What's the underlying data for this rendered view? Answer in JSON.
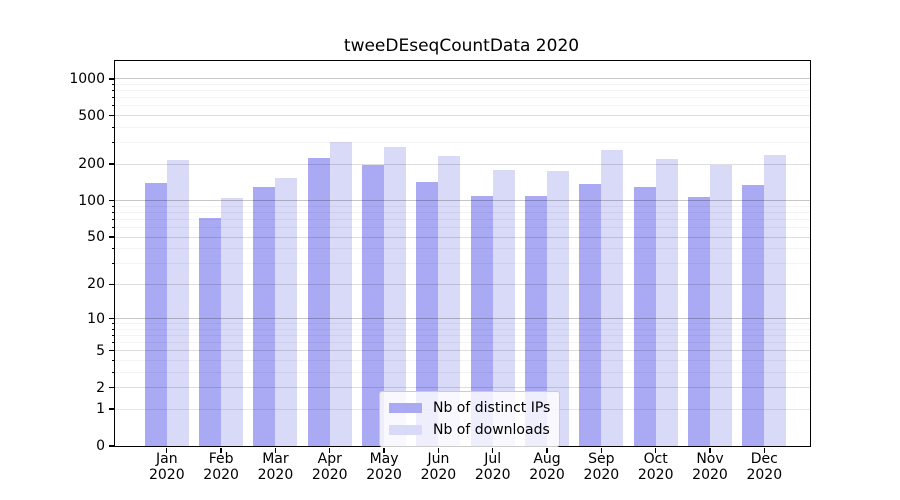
{
  "chart_data": {
    "type": "bar",
    "title": "tweeDEseqCountData 2020",
    "scale": "log1p",
    "grid": true,
    "legend_position": "inside-bottom-center",
    "months": [
      "Jan",
      "Feb",
      "Mar",
      "Apr",
      "May",
      "Jun",
      "Jul",
      "Aug",
      "Sep",
      "Oct",
      "Nov",
      "Dec"
    ],
    "year": "2020",
    "yticks": [
      0,
      1,
      2,
      5,
      10,
      20,
      50,
      100,
      200,
      500,
      1000
    ],
    "ylim": [
      0,
      1400
    ],
    "series": [
      {
        "name": "Nb of distinct IPs",
        "color": "#a9a9f4",
        "values": [
          140,
          72,
          130,
          224,
          196,
          143,
          109,
          109,
          137,
          130,
          107,
          134
        ]
      },
      {
        "name": "Nb of downloads",
        "color": "#d9d9f8",
        "values": [
          216,
          105,
          155,
          307,
          277,
          234,
          178,
          177,
          261,
          220,
          197,
          238
        ]
      }
    ],
    "colors": {
      "axis": "#000000",
      "grid_major": "#c6c6c6",
      "grid_tick": "#e6e6e6",
      "grid_minor": "#f2f2f2",
      "background": "#ffffff"
    }
  }
}
